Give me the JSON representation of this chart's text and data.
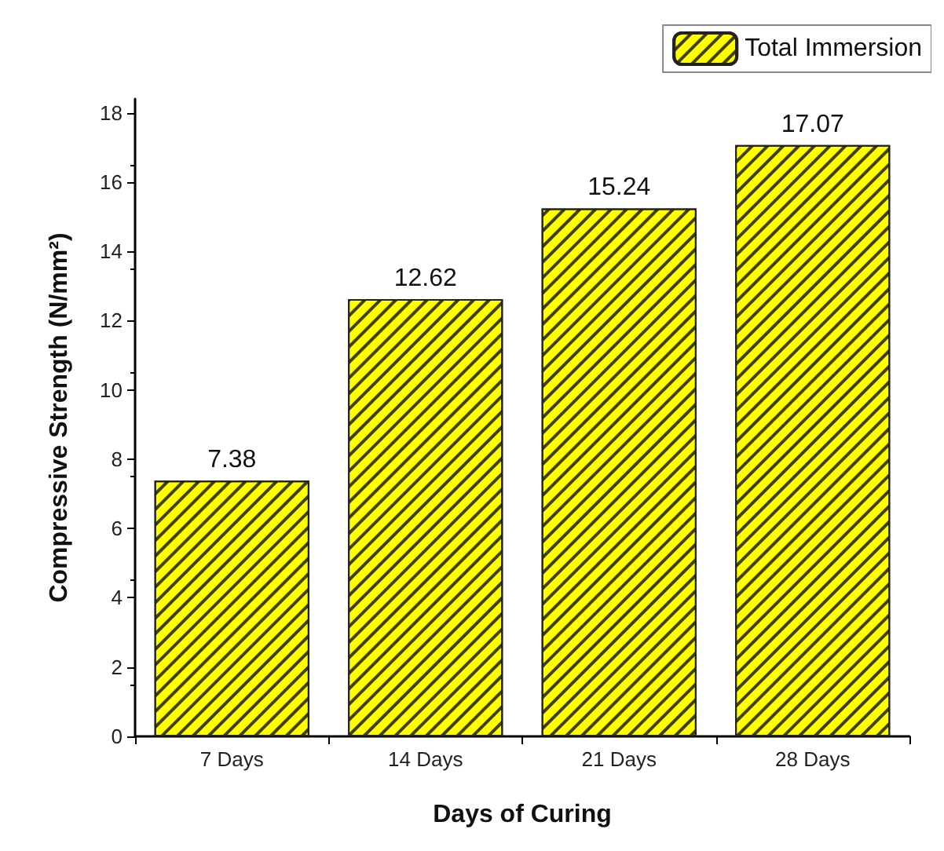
{
  "chart_data": {
    "type": "bar",
    "xlabel": "Days of Curing",
    "ylabel": "Compressive Strength (N/mm²)",
    "categories": [
      "7 Days",
      "14 Days",
      "21 Days",
      "28 Days"
    ],
    "series": [
      {
        "name": "Total Immersion",
        "color": "#ffff00",
        "values": [
          7.38,
          12.62,
          15.24,
          17.07
        ]
      }
    ],
    "ylim": [
      0,
      18.4
    ],
    "yticks": [
      0,
      2,
      4,
      6,
      8,
      10,
      12,
      14,
      16,
      18
    ],
    "data_labels": true,
    "grid": false,
    "legend": "top right"
  }
}
